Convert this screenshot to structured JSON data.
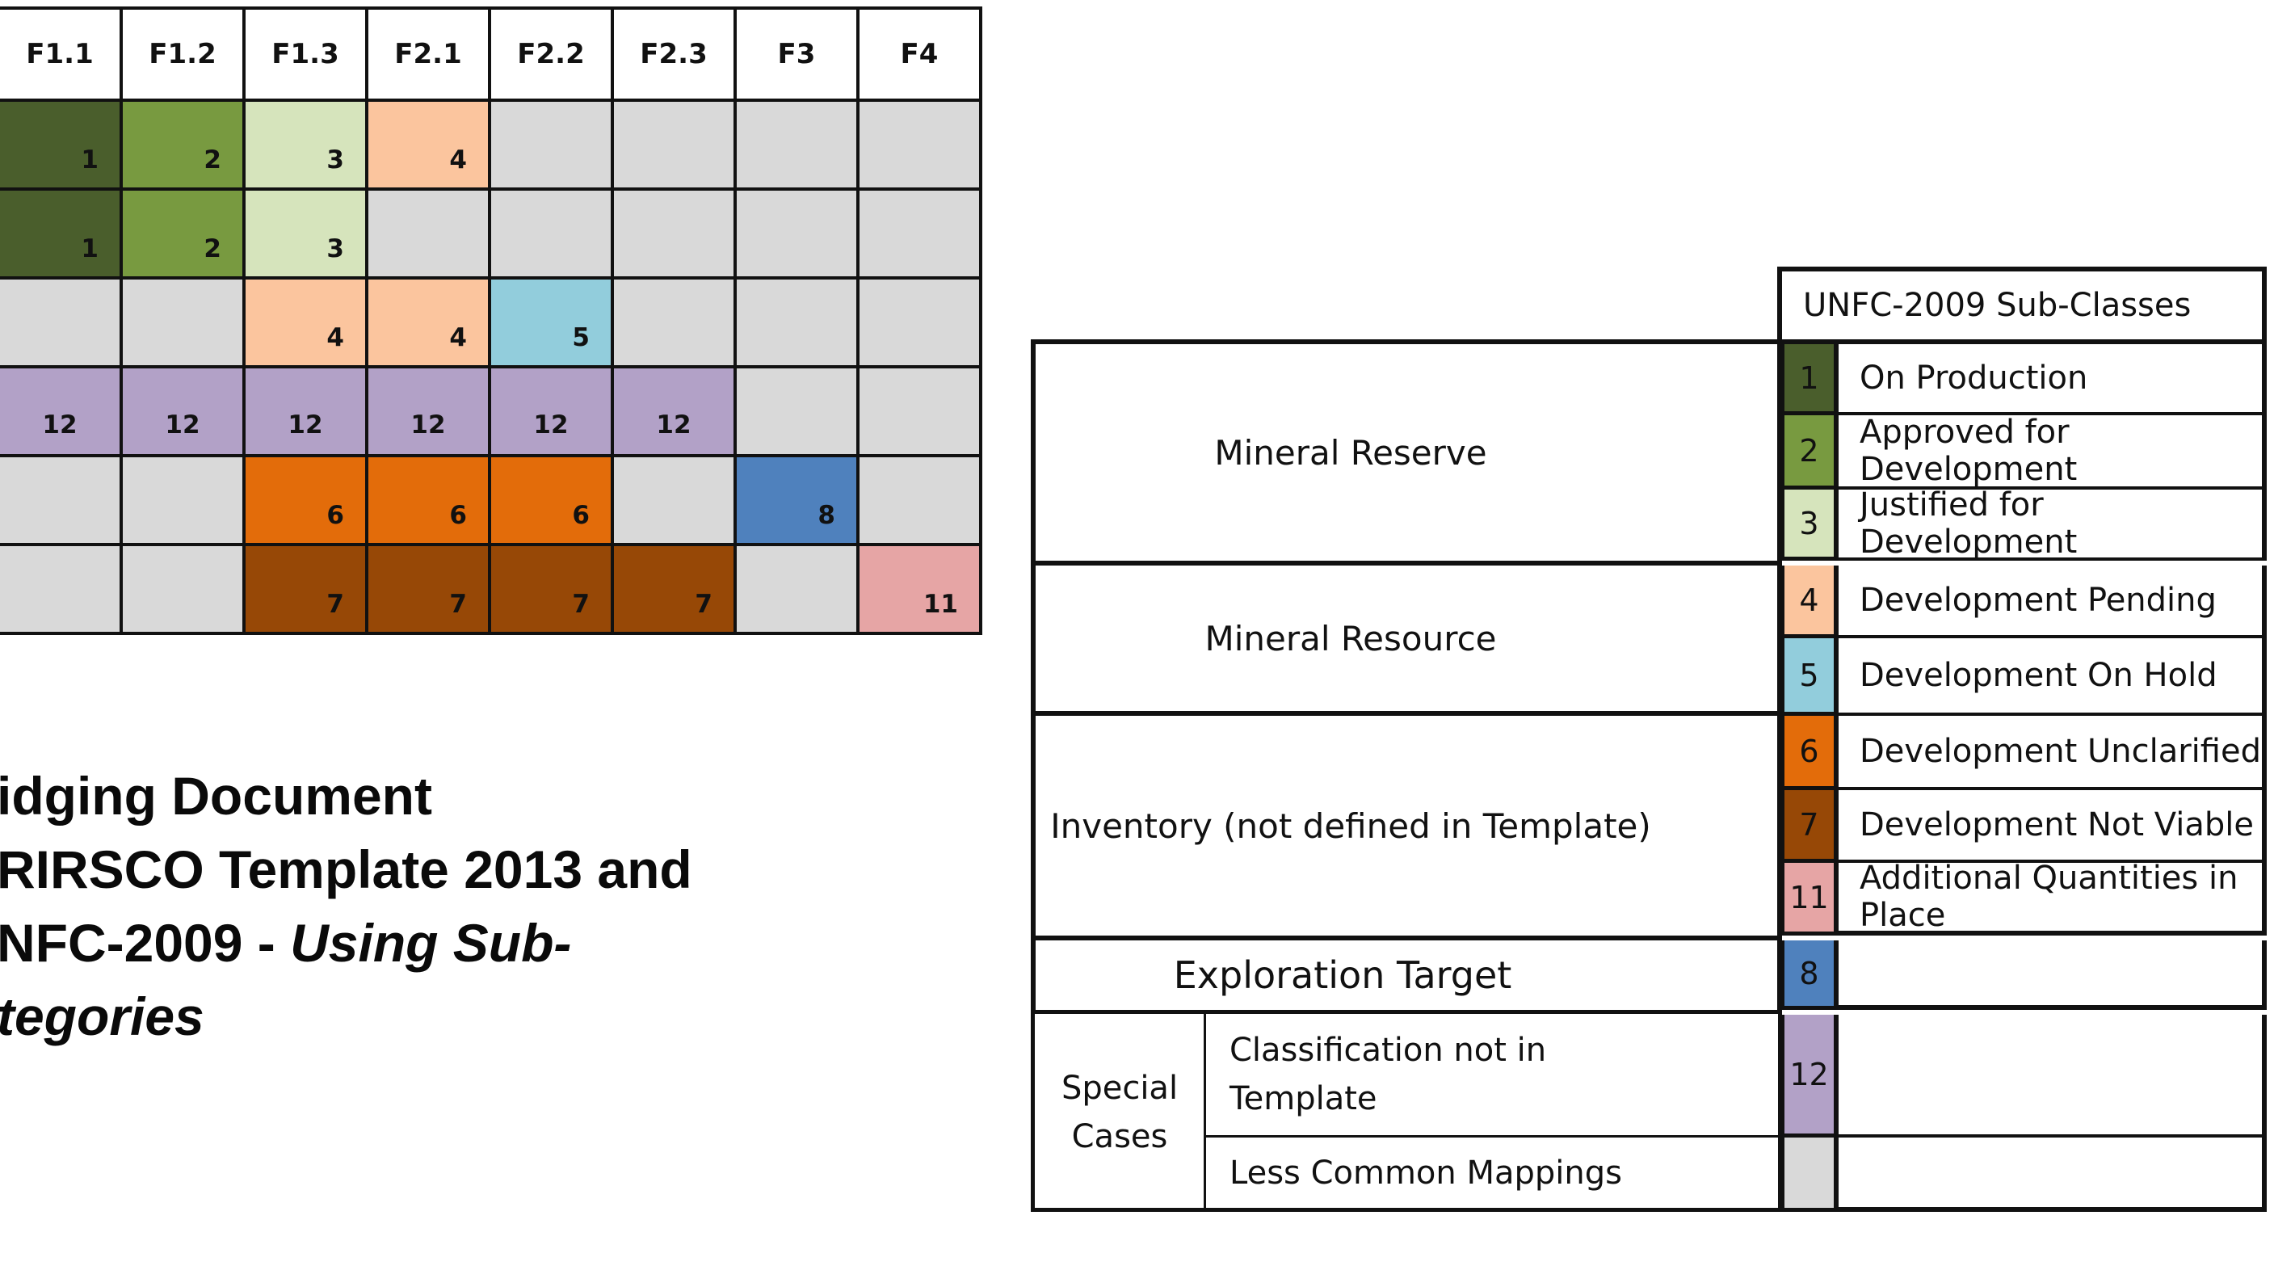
{
  "grid": {
    "columns": [
      "F1.1",
      "F1.2",
      "F1.3",
      "F2.1",
      "F2.2",
      "F2.3",
      "F3",
      "F4"
    ],
    "rows": [
      [
        {
          "v": "1",
          "c": "#4a5e2c"
        },
        {
          "v": "2",
          "c": "#789a40"
        },
        {
          "v": "3",
          "c": "#d6e4bc"
        },
        {
          "v": "4",
          "c": "#fbc59e"
        },
        {
          "v": "",
          "c": "#d9d9d9"
        },
        {
          "v": "",
          "c": "#d9d9d9"
        },
        {
          "v": "",
          "c": "#d9d9d9"
        },
        {
          "v": "",
          "c": "#d9d9d9"
        }
      ],
      [
        {
          "v": "1",
          "c": "#4a5e2c"
        },
        {
          "v": "2",
          "c": "#789a40"
        },
        {
          "v": "3",
          "c": "#d6e4bc"
        },
        {
          "v": "",
          "c": "#d9d9d9"
        },
        {
          "v": "",
          "c": "#d9d9d9"
        },
        {
          "v": "",
          "c": "#d9d9d9"
        },
        {
          "v": "",
          "c": "#d9d9d9"
        },
        {
          "v": "",
          "c": "#d9d9d9"
        }
      ],
      [
        {
          "v": "",
          "c": "#d9d9d9"
        },
        {
          "v": "",
          "c": "#d9d9d9"
        },
        {
          "v": "4",
          "c": "#fbc59e"
        },
        {
          "v": "4",
          "c": "#fbc59e"
        },
        {
          "v": "5",
          "c": "#92cddc"
        },
        {
          "v": "",
          "c": "#d9d9d9"
        },
        {
          "v": "",
          "c": "#d9d9d9"
        },
        {
          "v": "",
          "c": "#d9d9d9"
        }
      ],
      [
        {
          "v": "12",
          "c": "#b2a1c7"
        },
        {
          "v": "12",
          "c": "#b2a1c7"
        },
        {
          "v": "12",
          "c": "#b2a1c7"
        },
        {
          "v": "12",
          "c": "#b2a1c7"
        },
        {
          "v": "12",
          "c": "#b2a1c7"
        },
        {
          "v": "12",
          "c": "#b2a1c7"
        },
        {
          "v": "",
          "c": "#d9d9d9"
        },
        {
          "v": "",
          "c": "#d9d9d9"
        }
      ],
      [
        {
          "v": "",
          "c": "#d9d9d9"
        },
        {
          "v": "",
          "c": "#d9d9d9"
        },
        {
          "v": "6",
          "c": "#e36c0a"
        },
        {
          "v": "6",
          "c": "#e36c0a"
        },
        {
          "v": "6",
          "c": "#e36c0a"
        },
        {
          "v": "",
          "c": "#d9d9d9"
        },
        {
          "v": "8",
          "c": "#4f81bd"
        },
        {
          "v": "",
          "c": "#d9d9d9"
        }
      ],
      [
        {
          "v": "",
          "c": "#d9d9d9"
        },
        {
          "v": "",
          "c": "#d9d9d9"
        },
        {
          "v": "7",
          "c": "#974806"
        },
        {
          "v": "7",
          "c": "#974806"
        },
        {
          "v": "7",
          "c": "#974806"
        },
        {
          "v": "7",
          "c": "#974806"
        },
        {
          "v": "",
          "c": "#d9d9d9"
        },
        {
          "v": "11",
          "c": "#e6a5a5"
        }
      ]
    ]
  },
  "title": {
    "line1": "idging Document",
    "line2": "RIRSCO Template 2013 and",
    "line3_plain": "NFC-2009 - ",
    "line3_italic": "Using Sub-",
    "line4_italic": "tegories"
  },
  "legend": {
    "header": "UNFC-2009 Sub-Classes",
    "groups": {
      "reserve": "Mineral Reserve",
      "resource": "Mineral Resource",
      "inventory": "Inventory (not defined in Template)",
      "exploration": "Exploration Target",
      "special": "Special Cases",
      "special_a": "Classification not in Template",
      "special_b": "Less Common Mappings"
    },
    "items": [
      {
        "num": "1",
        "color": "#4a5e2c",
        "label": "On Production"
      },
      {
        "num": "2",
        "color": "#789a40",
        "label": "Approved for Development"
      },
      {
        "num": "3",
        "color": "#d6e4bc",
        "label": "Justified for Development"
      },
      {
        "num": "4",
        "color": "#fbc59e",
        "label": "Development Pending"
      },
      {
        "num": "5",
        "color": "#92cddc",
        "label": "Development On Hold"
      },
      {
        "num": "6",
        "color": "#e36c0a",
        "label": "Development Unclarified"
      },
      {
        "num": "7",
        "color": "#974806",
        "label": "Development Not Viable"
      },
      {
        "num": "11",
        "color": "#e6a5a5",
        "label": "Additional Quantities in Place"
      },
      {
        "num": "8",
        "color": "#4f81bd",
        "label": ""
      },
      {
        "num": "12",
        "color": "#b2a1c7",
        "label": ""
      },
      {
        "num": "",
        "color": "#d9d9d9",
        "label": ""
      }
    ]
  }
}
